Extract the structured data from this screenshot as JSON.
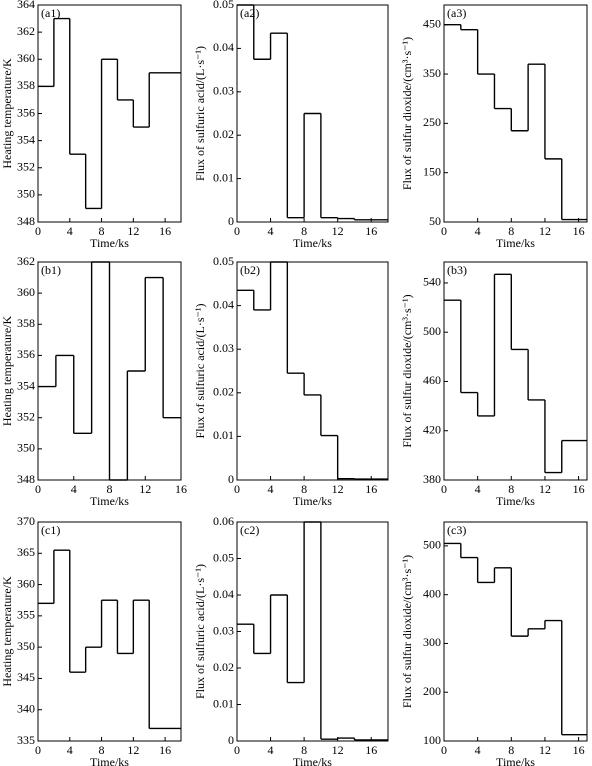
{
  "chart_data": [
    {
      "type": "step",
      "label": "(a1)",
      "ylabel": "Heating temperature/K",
      "xlabel": "Time/ks",
      "color": "#000000",
      "x": [
        0,
        2,
        4,
        6,
        8,
        10,
        12,
        14
      ],
      "values": [
        358,
        363,
        353,
        349,
        360,
        357,
        355,
        359
      ],
      "xlim": [
        0,
        18
      ],
      "ylim": [
        348,
        364
      ],
      "xticks": [
        0,
        4,
        8,
        12,
        16
      ],
      "yticks": [
        348,
        350,
        352,
        354,
        356,
        358,
        360,
        362,
        364
      ]
    },
    {
      "type": "step",
      "label": "(a2)",
      "ylabel": "Flux of sulfuric acid/(L·s⁻¹)",
      "xlabel": "Time/ks",
      "color": "#000000",
      "x": [
        0,
        2,
        4,
        6,
        8,
        10,
        12,
        14
      ],
      "values": [
        0.05,
        0.0375,
        0.0435,
        0.001,
        0.025,
        0.001,
        0.0008,
        0.0005
      ],
      "xlim": [
        0,
        18
      ],
      "ylim": [
        0,
        0.05
      ],
      "xticks": [
        0,
        4,
        8,
        12,
        16
      ],
      "yticks": [
        0,
        0.01,
        0.02,
        0.03,
        0.04,
        0.05
      ]
    },
    {
      "type": "step",
      "label": "(a3)",
      "ylabel": "Flux of sulfur dioxide/(cm³·s⁻¹)",
      "xlabel": "Time/ks",
      "color": "#000000",
      "x": [
        0,
        2,
        4,
        6,
        8,
        10,
        12,
        14
      ],
      "values": [
        450,
        440,
        350,
        280,
        235,
        370,
        178,
        55
      ],
      "xlim": [
        0,
        17
      ],
      "ylim": [
        50,
        490
      ],
      "xticks": [
        0,
        4,
        8,
        12,
        16
      ],
      "yticks": [
        50,
        150,
        250,
        350,
        450
      ]
    },
    {
      "type": "step",
      "label": "(b1)",
      "ylabel": "Heating temperature/K",
      "xlabel": "Time/ks",
      "color": "#000000",
      "x": [
        0,
        2,
        4,
        6,
        8,
        10,
        12,
        14
      ],
      "values": [
        354,
        356,
        351,
        362,
        348,
        355,
        361,
        352
      ],
      "xlim": [
        0,
        16
      ],
      "ylim": [
        348,
        362
      ],
      "xticks": [
        0,
        4,
        8,
        12,
        16
      ],
      "yticks": [
        348,
        350,
        352,
        354,
        356,
        358,
        360,
        362
      ]
    },
    {
      "type": "step",
      "label": "(b2)",
      "ylabel": "Flux of sulfuric acid/(L·s⁻¹)",
      "xlabel": "Time/ks",
      "color": "#000000",
      "x": [
        0,
        2,
        4,
        6,
        8,
        10,
        12,
        14
      ],
      "values": [
        0.0435,
        0.039,
        0.05,
        0.0245,
        0.0195,
        0.0102,
        0.0003,
        0.0002
      ],
      "xlim": [
        0,
        18
      ],
      "ylim": [
        0,
        0.05
      ],
      "xticks": [
        0,
        4,
        8,
        12,
        16
      ],
      "yticks": [
        0,
        0.01,
        0.02,
        0.03,
        0.04,
        0.05
      ]
    },
    {
      "type": "step",
      "label": "(b3)",
      "ylabel": "Flux of sulfur dioxide/(cm³·s⁻¹)",
      "xlabel": "Time/ks",
      "color": "#000000",
      "x": [
        0,
        2,
        4,
        6,
        8,
        10,
        12,
        14
      ],
      "values": [
        526,
        451,
        432,
        547,
        486,
        445,
        386,
        412
      ],
      "xlim": [
        0,
        17
      ],
      "ylim": [
        380,
        557
      ],
      "xticks": [
        0,
        4,
        8,
        12,
        16
      ],
      "yticks": [
        380,
        420,
        460,
        500,
        540
      ]
    },
    {
      "type": "step",
      "label": "(c1)",
      "ylabel": "Heating temperature/K",
      "xlabel": "Time/ks",
      "color": "#000000",
      "x": [
        0,
        2,
        4,
        6,
        8,
        10,
        12,
        14
      ],
      "values": [
        357,
        365.5,
        346,
        350,
        357.5,
        349,
        357.5,
        337
      ],
      "xlim": [
        0,
        18
      ],
      "ylim": [
        335,
        370
      ],
      "xticks": [
        0,
        4,
        8,
        12,
        16
      ],
      "yticks": [
        335,
        340,
        345,
        350,
        355,
        360,
        365,
        370
      ]
    },
    {
      "type": "step",
      "label": "(c2)",
      "ylabel": "Flux of sulfuric acid/(L·s⁻¹)",
      "xlabel": "Time/ks",
      "color": "#000000",
      "x": [
        0,
        2,
        4,
        6,
        8,
        10,
        12,
        14
      ],
      "values": [
        0.032,
        0.024,
        0.04,
        0.016,
        0.06,
        0.0005,
        0.0008,
        0.0003
      ],
      "xlim": [
        0,
        18
      ],
      "ylim": [
        0,
        0.06
      ],
      "xticks": [
        0,
        4,
        8,
        12,
        16
      ],
      "yticks": [
        0,
        0.01,
        0.02,
        0.03,
        0.04,
        0.05,
        0.06
      ]
    },
    {
      "type": "step",
      "label": "(c3)",
      "ylabel": "Flux of sulfur dioxide/(cm³·s⁻¹)",
      "xlabel": "Time/ks",
      "color": "#000000",
      "x": [
        0,
        2,
        4,
        6,
        8,
        10,
        12,
        14
      ],
      "values": [
        505,
        476,
        425,
        455,
        315,
        330,
        347,
        113
      ],
      "xlim": [
        0,
        17
      ],
      "ylim": [
        100,
        549
      ],
      "xticks": [
        0,
        4,
        8,
        12,
        16
      ],
      "yticks": [
        100,
        200,
        300,
        400,
        500
      ]
    }
  ]
}
